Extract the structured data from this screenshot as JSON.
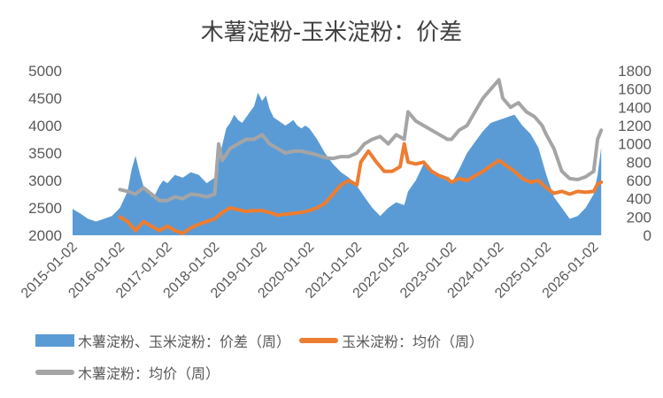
{
  "chart_data": {
    "type": "area+line",
    "title": "木薯淀粉-玉米淀粉：价差",
    "x_tick_labels": [
      "2015-01-02",
      "2016-01-02",
      "2017-01-02",
      "2018-01-02",
      "2019-01-02",
      "2020-01-02",
      "2021-01-02",
      "2022-01-02",
      "2023-01-02",
      "2024-01-02",
      "2025-01-02",
      "2026-01-02"
    ],
    "left_axis": {
      "ticks": [
        2000,
        2500,
        3000,
        3500,
        4000,
        4500,
        5000
      ],
      "min": 2000,
      "max": 5000
    },
    "right_axis": {
      "ticks": [
        0,
        200,
        400,
        600,
        800,
        1000,
        1200,
        1400,
        1600,
        1800
      ],
      "min": 0,
      "max": 1800
    },
    "legend_position": "bottom",
    "series": [
      {
        "name": "木薯淀粉、玉米淀粉：价差（周）",
        "kind": "area",
        "axis": "left",
        "color": "#5B9BD5",
        "points": [
          [
            "2015-01-02",
            2480
          ],
          [
            "2015-03-01",
            2400
          ],
          [
            "2015-05-01",
            2300
          ],
          [
            "2015-07-01",
            2250
          ],
          [
            "2015-09-01",
            2300
          ],
          [
            "2015-11-01",
            2350
          ],
          [
            "2016-01-02",
            2500
          ],
          [
            "2016-03-01",
            2800
          ],
          [
            "2016-04-01",
            3200
          ],
          [
            "2016-05-01",
            3450
          ],
          [
            "2016-06-01",
            3150
          ],
          [
            "2016-07-01",
            2900
          ],
          [
            "2016-08-01",
            2800
          ],
          [
            "2016-09-01",
            2700
          ],
          [
            "2016-10-01",
            2750
          ],
          [
            "2016-11-01",
            2900
          ],
          [
            "2016-12-01",
            3000
          ],
          [
            "2017-01-02",
            2950
          ],
          [
            "2017-03-01",
            3100
          ],
          [
            "2017-05-01",
            3050
          ],
          [
            "2017-07-01",
            3150
          ],
          [
            "2017-09-01",
            3100
          ],
          [
            "2017-11-01",
            2950
          ],
          [
            "2018-01-02",
            3050
          ],
          [
            "2018-02-01",
            3350
          ],
          [
            "2018-03-01",
            3650
          ],
          [
            "2018-04-01",
            3950
          ],
          [
            "2018-05-01",
            4050
          ],
          [
            "2018-06-01",
            4200
          ],
          [
            "2018-07-01",
            4100
          ],
          [
            "2018-08-01",
            4050
          ],
          [
            "2018-09-01",
            4150
          ],
          [
            "2018-10-01",
            4250
          ],
          [
            "2018-11-01",
            4350
          ],
          [
            "2018-12-01",
            4600
          ],
          [
            "2019-01-02",
            4450
          ],
          [
            "2019-02-01",
            4550
          ],
          [
            "2019-03-01",
            4300
          ],
          [
            "2019-04-01",
            4150
          ],
          [
            "2019-05-01",
            4100
          ],
          [
            "2019-06-01",
            4050
          ],
          [
            "2019-07-01",
            4000
          ],
          [
            "2019-08-01",
            4050
          ],
          [
            "2019-09-01",
            4100
          ],
          [
            "2019-10-01",
            4000
          ],
          [
            "2019-11-01",
            3950
          ],
          [
            "2019-12-01",
            4000
          ],
          [
            "2020-01-02",
            3950
          ],
          [
            "2020-03-01",
            3750
          ],
          [
            "2020-05-01",
            3500
          ],
          [
            "2020-07-01",
            3300
          ],
          [
            "2020-09-01",
            3150
          ],
          [
            "2020-11-01",
            3050
          ],
          [
            "2021-01-02",
            2900
          ],
          [
            "2021-03-01",
            2700
          ],
          [
            "2021-05-01",
            2500
          ],
          [
            "2021-07-01",
            2350
          ],
          [
            "2021-09-01",
            2500
          ],
          [
            "2021-11-01",
            2600
          ],
          [
            "2022-01-02",
            2550
          ],
          [
            "2022-02-01",
            2800
          ],
          [
            "2022-04-01",
            3000
          ],
          [
            "2022-06-01",
            3300
          ],
          [
            "2022-08-01",
            3150
          ],
          [
            "2022-10-01",
            3050
          ],
          [
            "2022-12-01",
            3000
          ],
          [
            "2023-01-02",
            2950
          ],
          [
            "2023-03-01",
            3200
          ],
          [
            "2023-05-01",
            3500
          ],
          [
            "2023-07-01",
            3700
          ],
          [
            "2023-09-01",
            3900
          ],
          [
            "2023-11-01",
            4050
          ],
          [
            "2024-01-02",
            4100
          ],
          [
            "2024-03-01",
            4150
          ],
          [
            "2024-05-01",
            4200
          ],
          [
            "2024-07-01",
            4000
          ],
          [
            "2024-09-01",
            3850
          ],
          [
            "2024-11-01",
            3600
          ],
          [
            "2025-01-02",
            3100
          ],
          [
            "2025-03-01",
            2700
          ],
          [
            "2025-05-01",
            2500
          ],
          [
            "2025-07-01",
            2300
          ],
          [
            "2025-09-01",
            2350
          ],
          [
            "2025-11-01",
            2500
          ],
          [
            "2026-01-02",
            2750
          ],
          [
            "2026-02-01",
            3100
          ],
          [
            "2026-03-01",
            3600
          ]
        ]
      },
      {
        "name": "玉米淀粉：均价（周）",
        "kind": "line",
        "axis": "right",
        "color": "#ED7D31",
        "points": [
          [
            "2016-01-02",
            200
          ],
          [
            "2016-03-01",
            150
          ],
          [
            "2016-05-01",
            50
          ],
          [
            "2016-07-01",
            150
          ],
          [
            "2016-09-01",
            100
          ],
          [
            "2016-11-01",
            50
          ],
          [
            "2017-01-02",
            100
          ],
          [
            "2017-03-01",
            50
          ],
          [
            "2017-05-01",
            20
          ],
          [
            "2017-07-01",
            80
          ],
          [
            "2017-09-01",
            120
          ],
          [
            "2017-11-01",
            150
          ],
          [
            "2018-01-02",
            180
          ],
          [
            "2018-03-01",
            250
          ],
          [
            "2018-05-01",
            300
          ],
          [
            "2018-07-01",
            280
          ],
          [
            "2018-09-01",
            260
          ],
          [
            "2018-11-01",
            270
          ],
          [
            "2019-01-02",
            270
          ],
          [
            "2019-03-01",
            250
          ],
          [
            "2019-05-01",
            220
          ],
          [
            "2019-07-01",
            230
          ],
          [
            "2019-09-01",
            240
          ],
          [
            "2019-11-01",
            250
          ],
          [
            "2020-01-02",
            270
          ],
          [
            "2020-03-01",
            300
          ],
          [
            "2020-05-01",
            350
          ],
          [
            "2020-07-01",
            450
          ],
          [
            "2020-09-01",
            550
          ],
          [
            "2020-11-01",
            600
          ],
          [
            "2021-01-02",
            550
          ],
          [
            "2021-02-01",
            800
          ],
          [
            "2021-04-01",
            920
          ],
          [
            "2021-06-01",
            800
          ],
          [
            "2021-08-01",
            700
          ],
          [
            "2021-10-01",
            700
          ],
          [
            "2021-12-01",
            750
          ],
          [
            "2022-01-02",
            1000
          ],
          [
            "2022-02-01",
            800
          ],
          [
            "2022-04-01",
            780
          ],
          [
            "2022-06-01",
            800
          ],
          [
            "2022-08-01",
            700
          ],
          [
            "2022-10-01",
            650
          ],
          [
            "2022-12-01",
            620
          ],
          [
            "2023-01-02",
            580
          ],
          [
            "2023-03-01",
            620
          ],
          [
            "2023-05-01",
            600
          ],
          [
            "2023-07-01",
            650
          ],
          [
            "2023-09-01",
            700
          ],
          [
            "2023-11-01",
            760
          ],
          [
            "2024-01-02",
            820
          ],
          [
            "2024-03-01",
            760
          ],
          [
            "2024-05-01",
            700
          ],
          [
            "2024-07-01",
            620
          ],
          [
            "2024-09-01",
            580
          ],
          [
            "2024-11-01",
            600
          ],
          [
            "2025-01-02",
            520
          ],
          [
            "2025-03-01",
            460
          ],
          [
            "2025-05-01",
            480
          ],
          [
            "2025-07-01",
            450
          ],
          [
            "2025-09-01",
            480
          ],
          [
            "2025-11-01",
            470
          ],
          [
            "2026-01-02",
            480
          ],
          [
            "2026-02-01",
            560
          ],
          [
            "2026-03-01",
            580
          ]
        ]
      },
      {
        "name": "木薯淀粉：均价（周）",
        "kind": "line",
        "axis": "right",
        "color": "#A5A5A5",
        "points": [
          [
            "2016-01-02",
            500
          ],
          [
            "2016-03-01",
            480
          ],
          [
            "2016-05-01",
            450
          ],
          [
            "2016-07-01",
            520
          ],
          [
            "2016-09-01",
            450
          ],
          [
            "2016-11-01",
            380
          ],
          [
            "2017-01-02",
            380
          ],
          [
            "2017-03-01",
            420
          ],
          [
            "2017-05-01",
            400
          ],
          [
            "2017-07-01",
            450
          ],
          [
            "2017-09-01",
            440
          ],
          [
            "2017-11-01",
            420
          ],
          [
            "2018-01-02",
            450
          ],
          [
            "2018-02-01",
            1000
          ],
          [
            "2018-03-01",
            820
          ],
          [
            "2018-05-01",
            950
          ],
          [
            "2018-07-01",
            1000
          ],
          [
            "2018-09-01",
            1050
          ],
          [
            "2018-11-01",
            1050
          ],
          [
            "2019-01-02",
            1100
          ],
          [
            "2019-02-01",
            1050
          ],
          [
            "2019-03-01",
            1000
          ],
          [
            "2019-05-01",
            950
          ],
          [
            "2019-07-01",
            900
          ],
          [
            "2019-09-01",
            920
          ],
          [
            "2019-11-01",
            920
          ],
          [
            "2020-01-02",
            900
          ],
          [
            "2020-03-01",
            880
          ],
          [
            "2020-05-01",
            850
          ],
          [
            "2020-07-01",
            840
          ],
          [
            "2020-09-01",
            860
          ],
          [
            "2020-11-01",
            860
          ],
          [
            "2021-01-02",
            900
          ],
          [
            "2021-03-01",
            1000
          ],
          [
            "2021-05-01",
            1050
          ],
          [
            "2021-07-01",
            1080
          ],
          [
            "2021-09-01",
            1000
          ],
          [
            "2021-11-01",
            1100
          ],
          [
            "2022-01-02",
            1050
          ],
          [
            "2022-02-01",
            1350
          ],
          [
            "2022-04-01",
            1250
          ],
          [
            "2022-06-01",
            1200
          ],
          [
            "2022-08-01",
            1150
          ],
          [
            "2022-10-01",
            1100
          ],
          [
            "2022-12-01",
            1050
          ],
          [
            "2023-01-02",
            1050
          ],
          [
            "2023-03-01",
            1150
          ],
          [
            "2023-05-01",
            1200
          ],
          [
            "2023-07-01",
            1350
          ],
          [
            "2023-09-01",
            1500
          ],
          [
            "2023-11-01",
            1600
          ],
          [
            "2024-01-02",
            1700
          ],
          [
            "2024-02-01",
            1500
          ],
          [
            "2024-04-01",
            1400
          ],
          [
            "2024-06-01",
            1450
          ],
          [
            "2024-08-01",
            1350
          ],
          [
            "2024-10-01",
            1300
          ],
          [
            "2024-12-01",
            1200
          ],
          [
            "2025-01-02",
            1100
          ],
          [
            "2025-03-01",
            950
          ],
          [
            "2025-05-01",
            700
          ],
          [
            "2025-07-01",
            620
          ],
          [
            "2025-09-01",
            610
          ],
          [
            "2025-11-01",
            640
          ],
          [
            "2026-01-02",
            700
          ],
          [
            "2026-02-01",
            1050
          ],
          [
            "2026-03-01",
            1150
          ]
        ]
      }
    ]
  }
}
